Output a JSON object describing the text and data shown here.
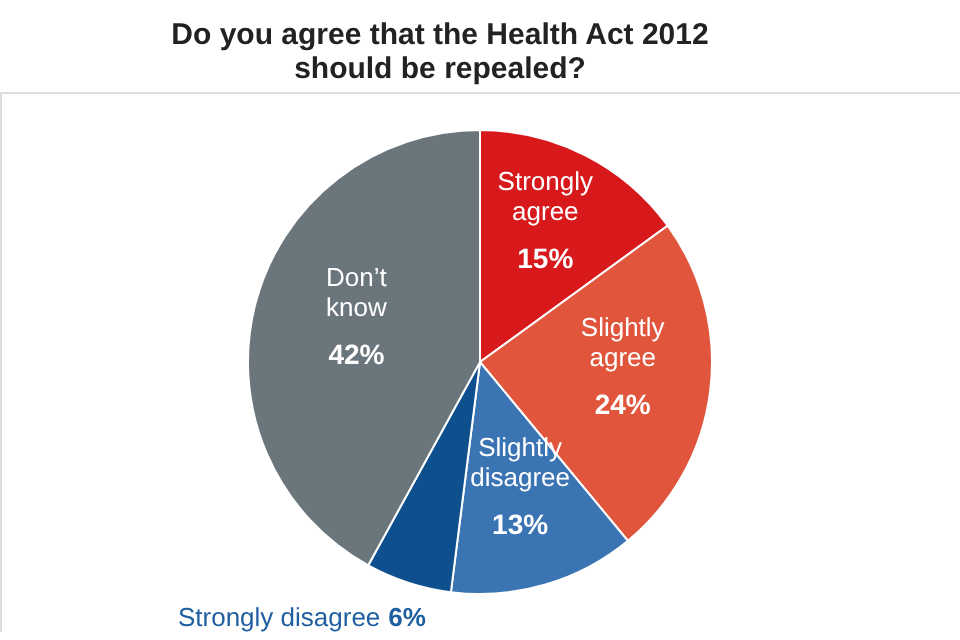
{
  "chart_data": {
    "type": "pie",
    "title": "Do you agree that the Health Act 2012 should be repealed?",
    "categories": [
      "Strongly agree",
      "Slightly agree",
      "Slightly disagree",
      "Strongly disagree",
      "Don’t know"
    ],
    "values": [
      15,
      24,
      13,
      6,
      42
    ],
    "colors": [
      "#d7191c",
      "#e0553c",
      "#3a74b3",
      "#0e4f8e",
      "#6b767c"
    ],
    "value_labels": [
      "15%",
      "24%",
      "13%",
      "6%",
      "42%"
    ]
  }
}
